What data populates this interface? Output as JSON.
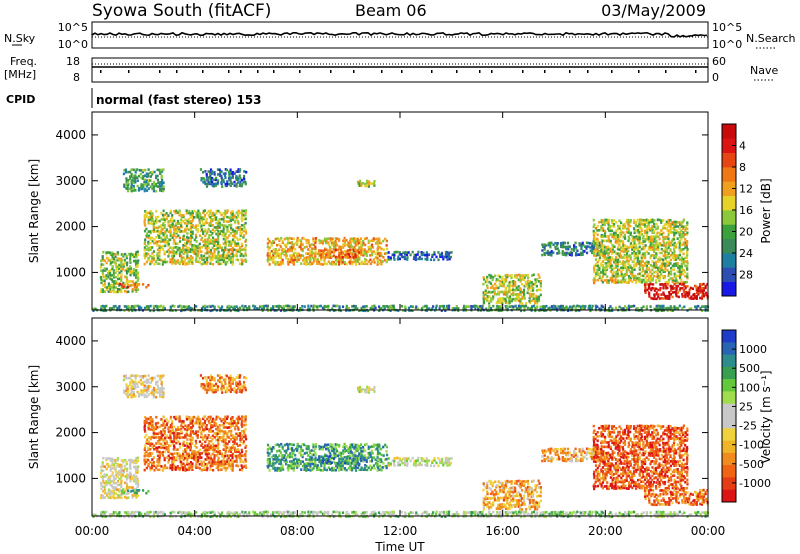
{
  "header": {
    "station": "Syowa South (fitACF)",
    "beam": "Beam 06",
    "date": "03/May/2009"
  },
  "top_panels": {
    "nsky_label": "N.Sky",
    "nsearch_label": "N.Search",
    "freq_label_1": "Freq.",
    "freq_label_2": "[MHz]",
    "nave_label": "Nave",
    "cpid_label": "CPID",
    "cpid_value": "normal (fast stereo) 153",
    "noise_ticks_left": [
      "10^5",
      "10^0"
    ],
    "noise_ticks_right": [
      "10^5",
      "10^0"
    ],
    "freq_ticks_left": [
      "18",
      "8"
    ],
    "freq_ticks_right": [
      "60",
      "0"
    ]
  },
  "chart_data": [
    {
      "type": "heatmap",
      "quantity": "Power",
      "ylabel": "Slant Range [km]",
      "xlabel": "Time UT",
      "colorbar_label": "Power [dB]",
      "ylim": [
        180,
        4500
      ],
      "xlim": [
        0,
        24
      ],
      "yticks": [
        1000,
        2000,
        3000,
        4000
      ],
      "xticks": [
        "00:00",
        "04:00",
        "08:00",
        "12:00",
        "16:00",
        "20:00",
        "00:00"
      ],
      "colorbar_ticks": [
        "4",
        "8",
        "12",
        "16",
        "20",
        "24",
        "28"
      ],
      "colorbar_colors": [
        "#1919e6",
        "#2d4fb4",
        "#1e7fa0",
        "#3a8a5a",
        "#3ca03c",
        "#8cc83c",
        "#e6d228",
        "#f0a01e",
        "#f07814",
        "#e64614",
        "#dc1414",
        "#c80a0a"
      ],
      "echo_regions": [
        {
          "t0": 0.3,
          "t1": 1.8,
          "r0": 600,
          "r1": 1500,
          "level": 0.45
        },
        {
          "t0": 0.9,
          "t1": 2.2,
          "r0": 700,
          "r1": 800,
          "level": 0.75
        },
        {
          "t0": 1.2,
          "t1": 2.8,
          "r0": 2800,
          "r1": 3300,
          "level": 0.35
        },
        {
          "t0": 2.0,
          "t1": 6.0,
          "r0": 1200,
          "r1": 2400,
          "level": 0.5
        },
        {
          "t0": 4.2,
          "t1": 6.0,
          "r0": 2900,
          "r1": 3300,
          "level": 0.2
        },
        {
          "t0": 6.8,
          "t1": 11.5,
          "r0": 1200,
          "r1": 1800,
          "level": 0.6
        },
        {
          "t0": 8.8,
          "t1": 10.5,
          "r0": 1350,
          "r1": 1550,
          "level": 0.75
        },
        {
          "t0": 10.3,
          "t1": 11.0,
          "r0": 2900,
          "r1": 3050,
          "level": 0.5
        },
        {
          "t0": 11.5,
          "t1": 14.0,
          "r0": 1300,
          "r1": 1500,
          "level": 0.2
        },
        {
          "t0": 15.2,
          "t1": 17.5,
          "r0": 350,
          "r1": 1000,
          "level": 0.5
        },
        {
          "t0": 17.5,
          "t1": 20.0,
          "r0": 1400,
          "r1": 1700,
          "level": 0.25
        },
        {
          "t0": 19.5,
          "t1": 23.2,
          "r0": 800,
          "r1": 2200,
          "level": 0.5
        },
        {
          "t0": 21.5,
          "t1": 24.0,
          "r0": 450,
          "r1": 800,
          "level": 0.9
        },
        {
          "t0": 0.0,
          "t1": 24.0,
          "r0": 190,
          "r1": 320,
          "level": 0.3
        }
      ]
    },
    {
      "type": "heatmap",
      "quantity": "Velocity",
      "ylabel": "Slant Range [km]",
      "xlabel": "Time UT",
      "colorbar_label": "Velocity [m s⁻¹]",
      "ylim": [
        180,
        4500
      ],
      "xlim": [
        0,
        24
      ],
      "yticks": [
        1000,
        2000,
        3000,
        4000
      ],
      "xticks": [
        "00:00",
        "04:00",
        "08:00",
        "12:00",
        "16:00",
        "20:00",
        "00:00"
      ],
      "colorbar_ticks": [
        "1000",
        "500",
        "100",
        "25",
        "-25",
        "-100",
        "-500",
        "-1000"
      ],
      "colorbar_colors": [
        "#1e3cc8",
        "#2864b4",
        "#2d8c8c",
        "#37a050",
        "#64c83c",
        "#a0dc50",
        "#c8c8c8",
        "#c8c8c8",
        "#f0d23c",
        "#f0b428",
        "#f08c1e",
        "#f06414",
        "#e63c14",
        "#dc1414"
      ],
      "echo_regions": [
        {
          "t0": 0.3,
          "t1": 1.8,
          "r0": 600,
          "r1": 1500,
          "level": 0.55
        },
        {
          "t0": 0.9,
          "t1": 2.2,
          "r0": 700,
          "r1": 800,
          "level": 0.3
        },
        {
          "t0": 1.2,
          "t1": 2.8,
          "r0": 2800,
          "r1": 3300,
          "level": 0.6
        },
        {
          "t0": 2.0,
          "t1": 6.0,
          "r0": 1200,
          "r1": 2400,
          "level": 0.8
        },
        {
          "t0": 4.2,
          "t1": 6.0,
          "r0": 2900,
          "r1": 3300,
          "level": 0.75
        },
        {
          "t0": 6.8,
          "t1": 11.5,
          "r0": 1200,
          "r1": 1800,
          "level": 0.25
        },
        {
          "t0": 8.8,
          "t1": 10.5,
          "r0": 1350,
          "r1": 1550,
          "level": 0.2
        },
        {
          "t0": 10.3,
          "t1": 11.0,
          "r0": 2900,
          "r1": 3050,
          "level": 0.5
        },
        {
          "t0": 11.5,
          "t1": 14.0,
          "r0": 1300,
          "r1": 1500,
          "level": 0.5
        },
        {
          "t0": 15.2,
          "t1": 17.5,
          "r0": 350,
          "r1": 1000,
          "level": 0.7
        },
        {
          "t0": 17.5,
          "t1": 20.0,
          "r0": 1400,
          "r1": 1700,
          "level": 0.7
        },
        {
          "t0": 19.5,
          "t1": 23.2,
          "r0": 800,
          "r1": 2200,
          "level": 0.85
        },
        {
          "t0": 21.5,
          "t1": 24.0,
          "r0": 450,
          "r1": 800,
          "level": 0.8
        },
        {
          "t0": 0.0,
          "t1": 24.0,
          "r0": 190,
          "r1": 320,
          "level": 0.4
        }
      ]
    }
  ]
}
